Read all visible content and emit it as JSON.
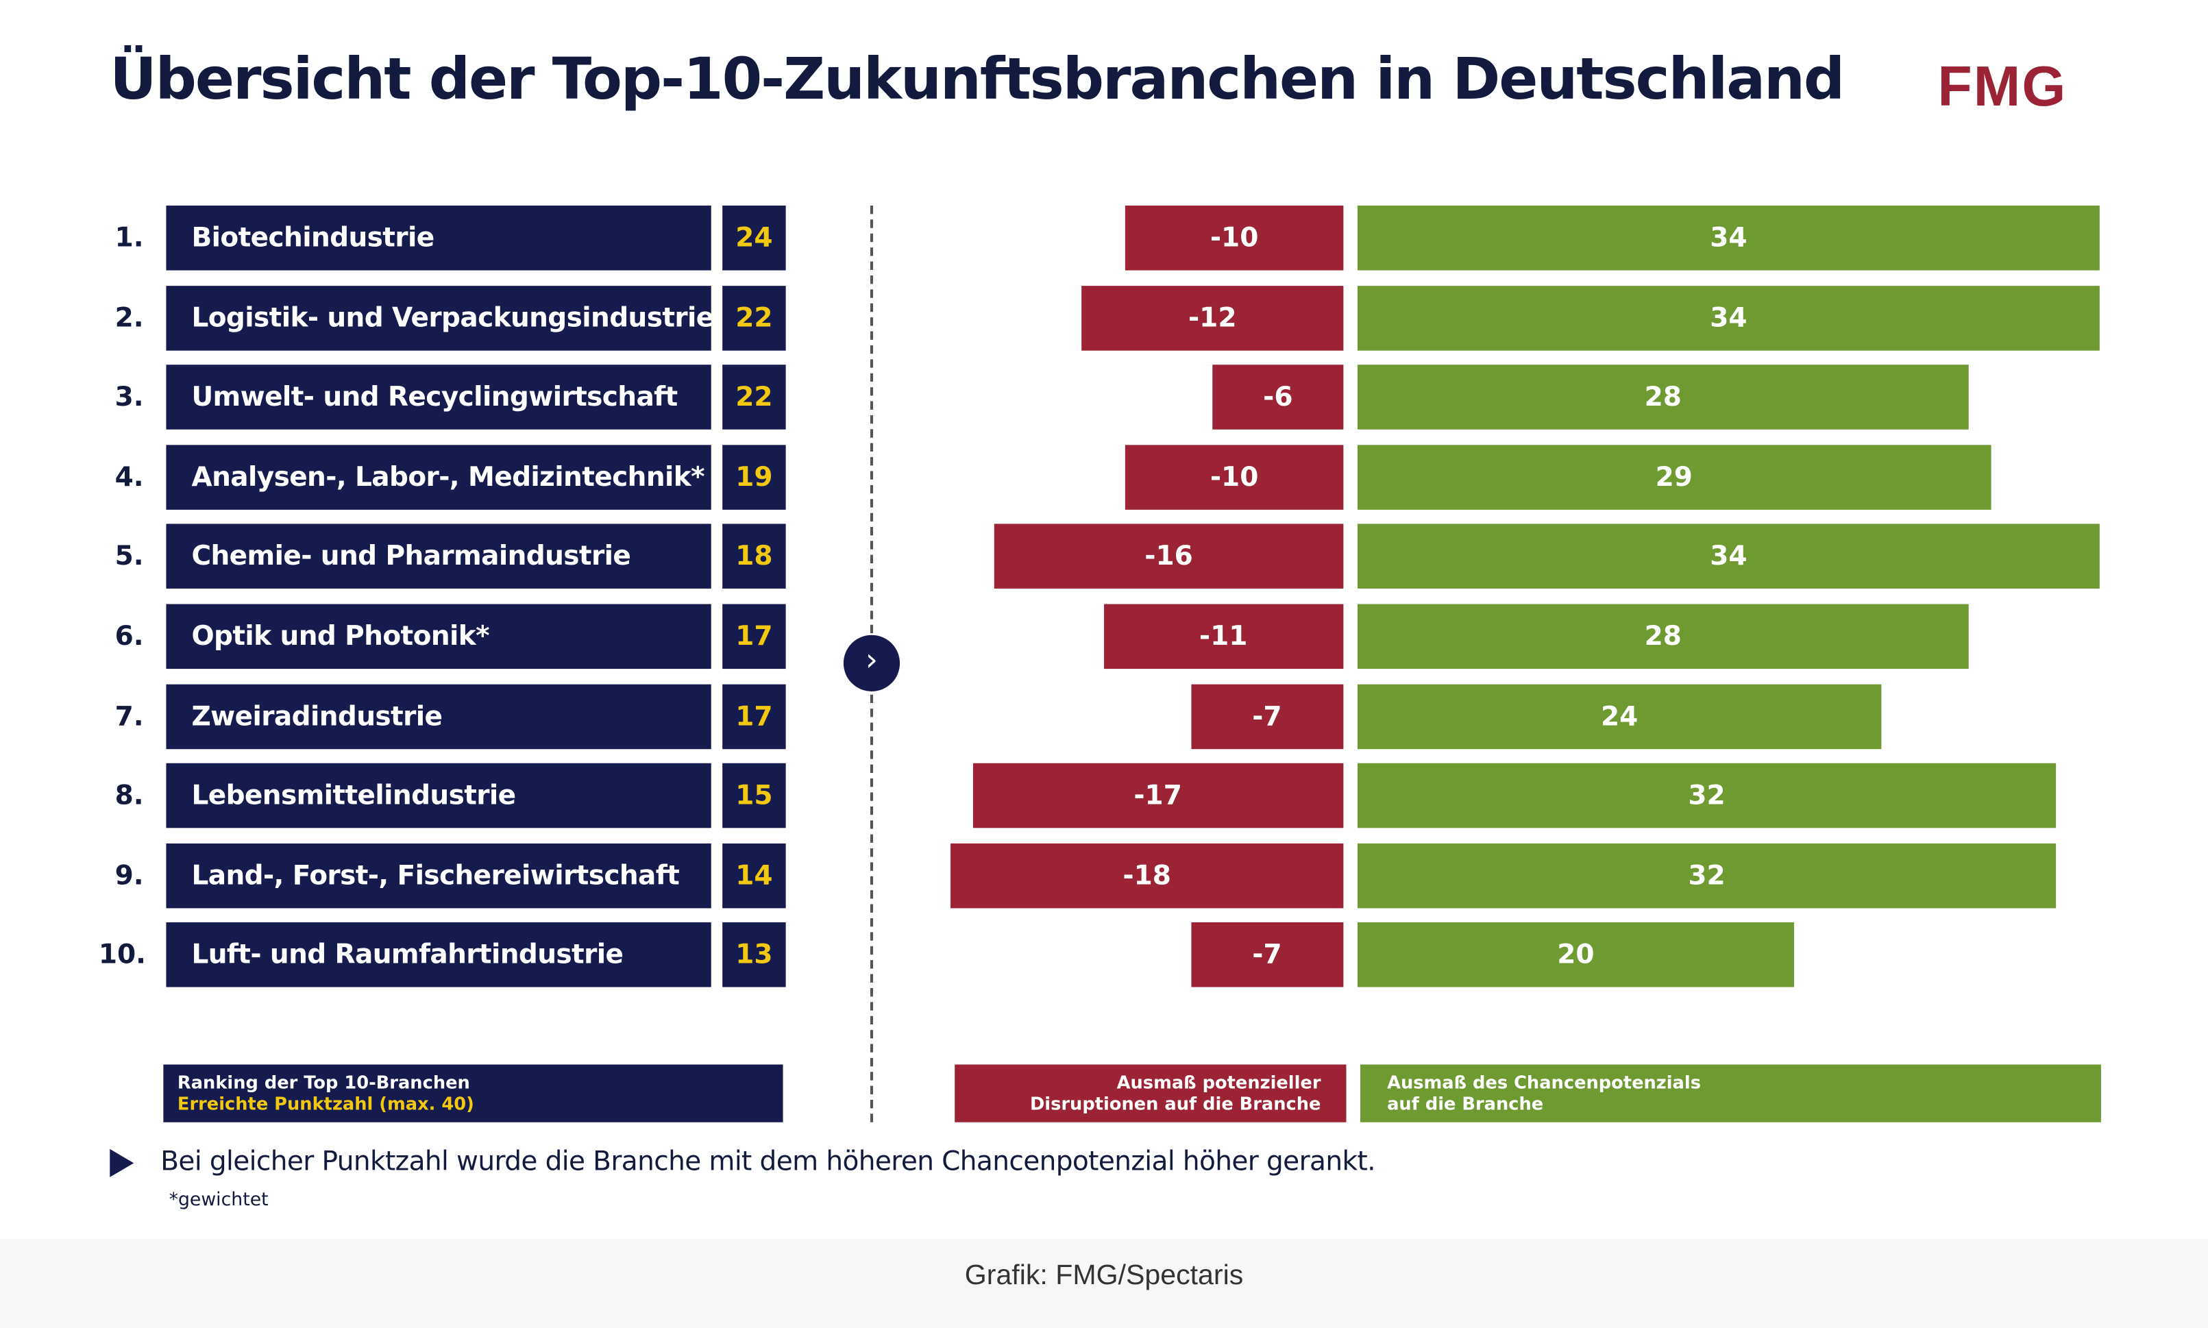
{
  "title": "Übersicht der Top-10-Zukunftsbranchen in Deutschland",
  "logo": "FMG",
  "colors": {
    "navy": "#161b4d",
    "red": "#9b2335",
    "green": "#6f9a32",
    "score_yellow": "#f2c811"
  },
  "chart_data": {
    "type": "bar",
    "title": "Übersicht der Top-10-Zukunftsbranchen in Deutschland",
    "categories": [
      "Biotechindustrie",
      "Logistik- und Verpackungsindustrie",
      "Umwelt- und Recyclingwirtschaft",
      "Analysen-, Labor-, Medizintechnik*",
      "Chemie- und Pharmaindustrie",
      "Optik und Photonik*",
      "Zweiradindustrie",
      "Lebensmittelindustrie",
      "Land-, Forst-, Fischereiwirtschaft",
      "Luft- und Raumfahrtindustrie"
    ],
    "ranks": [
      "1.",
      "2.",
      "3.",
      "4.",
      "5.",
      "6.",
      "7.",
      "8.",
      "9.",
      "10."
    ],
    "scores": [
      24,
      22,
      22,
      19,
      18,
      17,
      17,
      15,
      14,
      13
    ],
    "series": [
      {
        "name": "Ausmaß potenzieller Disruptionen auf die Branche",
        "values": [
          -10,
          -12,
          -6,
          -10,
          -16,
          -11,
          -7,
          -17,
          -18,
          -7
        ],
        "color": "#9b2335"
      },
      {
        "name": "Ausmaß des Chancenpotenzials auf die Branche",
        "values": [
          34,
          34,
          28,
          29,
          34,
          28,
          24,
          32,
          32,
          20
        ],
        "color": "#6f9a32"
      }
    ],
    "orientation": "horizontal",
    "grid": false
  },
  "legend": {
    "ranking_line1": "Ranking der Top 10-Branchen",
    "ranking_line2": "Erreichte Punktzahl (max. 40)",
    "disruption_line1": "Ausmaß potenzieller",
    "disruption_line2": "Disruptionen auf die Branche",
    "chance_line1": "Ausmaß des Chancenpotenzials",
    "chance_line2": "auf die Branche"
  },
  "note": "Bei gleicher Punktzahl wurde die Branche mit dem höheren Chancenpotenzial höher gerankt.",
  "footnote": "*gewichtet",
  "source": "Grafik: FMG/Spectaris",
  "icons": {
    "arrow": "chevron-right-icon",
    "note": "triangle-right-icon"
  }
}
